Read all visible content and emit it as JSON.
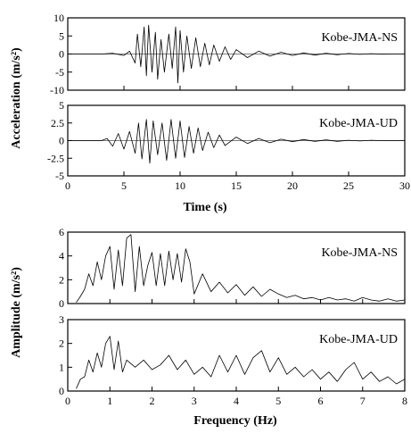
{
  "chart_data": [
    {
      "type": "line",
      "name": "Kobe-JMA-NS acceleration",
      "annotation": "Kobe-JMA-NS",
      "xlim": [
        0,
        30
      ],
      "ylim": [
        -10,
        10
      ],
      "yticks": [
        -10,
        -5,
        0,
        5,
        10
      ],
      "xticks": [
        0,
        5,
        10,
        15,
        20,
        25,
        30
      ],
      "series": [
        {
          "x": [
            0,
            3,
            4,
            5,
            5.5,
            6,
            6.2,
            6.5,
            6.8,
            7,
            7.2,
            7.5,
            7.8,
            8,
            8.3,
            8.6,
            9,
            9.3,
            9.6,
            9.8,
            10,
            10.3,
            10.6,
            11,
            11.4,
            11.8,
            12.2,
            12.6,
            13,
            13.5,
            14,
            14.5,
            15,
            16,
            17,
            18,
            19,
            20,
            21,
            22,
            23,
            24,
            25,
            26,
            27,
            28,
            29,
            30
          ],
          "y": [
            0,
            0,
            0.2,
            -0.4,
            0.8,
            -2.5,
            5.5,
            -3.5,
            7.5,
            -6,
            8,
            -5,
            6,
            -7,
            4,
            -5,
            5.5,
            -4,
            7.5,
            -8,
            6.5,
            -5,
            5,
            -4,
            4.5,
            -3.5,
            3,
            -3,
            2.5,
            -2,
            2,
            -1.5,
            1.2,
            -1,
            0.8,
            -0.6,
            0.5,
            -0.4,
            0.3,
            -0.3,
            0.2,
            -0.2,
            0.15,
            -0.1,
            0.1,
            -0.05,
            0,
            0
          ]
        }
      ]
    },
    {
      "type": "line",
      "name": "Kobe-JMA-UD acceleration",
      "annotation": "Kobe-JMA-UD",
      "xlim": [
        0,
        30
      ],
      "ylim": [
        -5,
        5
      ],
      "yticks": [
        -5,
        -2.5,
        0,
        2.5,
        5
      ],
      "xticks": [
        0,
        5,
        10,
        15,
        20,
        25,
        30
      ],
      "xlabel": "Time (s)",
      "series": [
        {
          "x": [
            0,
            3,
            3.5,
            4,
            4.5,
            5,
            5.5,
            6,
            6.3,
            6.6,
            7,
            7.3,
            7.6,
            8,
            8.4,
            8.8,
            9.2,
            9.6,
            10,
            10.4,
            10.8,
            11.2,
            11.6,
            12,
            12.5,
            13,
            13.5,
            14,
            15,
            16,
            17,
            18,
            19,
            20,
            21,
            22,
            23,
            24,
            25,
            26,
            27,
            28,
            29,
            30
          ],
          "y": [
            0,
            0,
            0.3,
            -0.8,
            1,
            -1.2,
            1.3,
            -1.8,
            2.5,
            -2.6,
            3,
            -3.2,
            2.8,
            -2,
            2.5,
            -2.8,
            3,
            -2.5,
            2.8,
            -2.4,
            2,
            -1.8,
            1.8,
            -1.4,
            1.2,
            -1,
            0.8,
            -0.7,
            0.5,
            -0.4,
            0.3,
            -0.3,
            0.2,
            -0.15,
            0.15,
            -0.1,
            0.1,
            -0.1,
            0.05,
            -0.05,
            0.05,
            0,
            0,
            0
          ]
        }
      ]
    },
    {
      "type": "line",
      "name": "Kobe-JMA-NS Fourier amplitude",
      "annotation": "Kobe-JMA-NS",
      "xlim": [
        0,
        8
      ],
      "ylim": [
        0,
        6
      ],
      "yticks": [
        0,
        2,
        4,
        6
      ],
      "xticks": [
        0,
        1,
        2,
        3,
        4,
        5,
        6,
        7,
        8
      ],
      "series": [
        {
          "x": [
            0.2,
            0.3,
            0.4,
            0.5,
            0.6,
            0.7,
            0.8,
            0.9,
            1,
            1.1,
            1.2,
            1.3,
            1.4,
            1.5,
            1.6,
            1.7,
            1.8,
            1.9,
            2,
            2.1,
            2.2,
            2.3,
            2.4,
            2.5,
            2.6,
            2.7,
            2.8,
            2.9,
            3,
            3.2,
            3.4,
            3.6,
            3.8,
            4,
            4.2,
            4.4,
            4.6,
            4.8,
            5,
            5.2,
            5.4,
            5.6,
            5.8,
            6,
            6.2,
            6.4,
            6.6,
            6.8,
            7,
            7.2,
            7.4,
            7.6,
            7.8,
            8
          ],
          "y": [
            0.1,
            0.6,
            1.2,
            2.5,
            1.5,
            3.5,
            2,
            4,
            4.8,
            1.2,
            4.5,
            1.5,
            5.5,
            5.8,
            1,
            4.8,
            1.5,
            3.2,
            4.3,
            1.5,
            4.2,
            1.5,
            4.4,
            2,
            4.2,
            1.8,
            4.6,
            3.5,
            0.8,
            2.5,
            1,
            1.8,
            0.9,
            1.6,
            0.7,
            1.4,
            0.6,
            1.2,
            0.8,
            0.5,
            0.7,
            0.4,
            0.5,
            0.3,
            0.5,
            0.3,
            0.4,
            0.2,
            0.5,
            0.3,
            0.2,
            0.4,
            0.2,
            0.3
          ]
        }
      ]
    },
    {
      "type": "line",
      "name": "Kobe-JMA-UD Fourier amplitude",
      "annotation": "Kobe-JMA-UD",
      "xlim": [
        0,
        8
      ],
      "ylim": [
        0,
        3
      ],
      "yticks": [
        0,
        1,
        2,
        3
      ],
      "xticks": [
        0,
        1,
        2,
        3,
        4,
        5,
        6,
        7,
        8
      ],
      "xlabel": "Frequency (Hz)",
      "series": [
        {
          "x": [
            0.2,
            0.3,
            0.4,
            0.5,
            0.6,
            0.7,
            0.8,
            0.9,
            1,
            1.1,
            1.2,
            1.3,
            1.4,
            1.6,
            1.8,
            2,
            2.2,
            2.4,
            2.6,
            2.8,
            3,
            3.2,
            3.4,
            3.6,
            3.8,
            4,
            4.2,
            4.4,
            4.6,
            4.8,
            5,
            5.2,
            5.4,
            5.6,
            5.8,
            6,
            6.2,
            6.4,
            6.6,
            6.8,
            7,
            7.2,
            7.4,
            7.6,
            7.8,
            8
          ],
          "y": [
            0.1,
            0.5,
            0.6,
            1.3,
            0.8,
            1.6,
            1,
            2,
            2.3,
            0.9,
            2.1,
            0.8,
            1.3,
            1,
            1.3,
            0.9,
            1.1,
            1.5,
            0.9,
            1.3,
            0.7,
            1,
            0.6,
            1.5,
            0.8,
            1.5,
            0.7,
            1.4,
            1.7,
            0.8,
            1.4,
            0.7,
            1,
            0.6,
            0.9,
            0.5,
            0.8,
            0.4,
            0.9,
            1.2,
            0.5,
            0.8,
            0.4,
            0.6,
            0.3,
            0.5
          ]
        }
      ]
    }
  ],
  "ylabel_acc": "Acceleration (m/s²)",
  "ylabel_amp": "Amplitude (m/s²)"
}
